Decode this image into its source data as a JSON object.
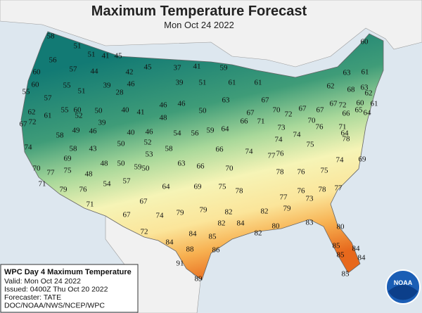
{
  "title": "Maximum Temperature Forecast",
  "subtitle": "Mon Oct 24 2022",
  "temperatures": [
    58,
    56,
    60,
    60,
    55,
    57,
    55,
    60,
    62,
    61,
    67,
    72,
    58,
    74,
    69,
    70,
    77,
    75,
    71,
    79,
    48,
    76,
    71,
    54,
    57,
    51,
    51,
    41,
    45,
    57,
    44,
    55,
    51,
    39,
    28,
    42,
    46,
    49,
    46,
    39,
    52,
    50,
    40,
    41,
    46,
    40,
    50,
    43,
    58,
    52,
    53,
    50,
    59,
    48,
    50,
    45,
    37,
    41,
    59,
    39,
    51,
    46,
    46,
    50,
    48,
    54,
    56,
    59,
    64,
    58,
    63,
    66,
    66,
    70,
    64,
    69,
    75,
    78,
    61,
    61,
    63,
    67,
    66,
    71,
    67,
    70,
    72,
    73,
    74,
    74,
    77,
    76,
    75,
    74,
    70,
    67,
    67,
    76,
    71,
    64,
    78,
    74,
    78,
    76,
    75,
    69,
    60,
    63,
    61,
    62,
    68,
    63,
    62,
    61,
    64,
    67,
    72,
    66,
    65,
    60,
    77,
    76,
    79,
    73,
    78,
    77,
    80,
    83,
    80,
    82,
    82,
    84,
    82,
    85,
    84,
    85,
    84,
    85,
    79,
    79,
    67,
    67,
    74,
    72,
    84,
    84,
    85,
    82,
    88,
    86,
    91,
    89
  ],
  "info_box": {
    "heading": "WPC Day 4 Maximum Temperature",
    "lines": [
      "Valid: Mon Oct 24 2022",
      "Issued: 0400Z Thu Oct 20 2022",
      "Forecaster: TATE",
      "DOC/NOAA/NWS/NCEP/WPC"
    ]
  },
  "logo": "NOAA"
}
